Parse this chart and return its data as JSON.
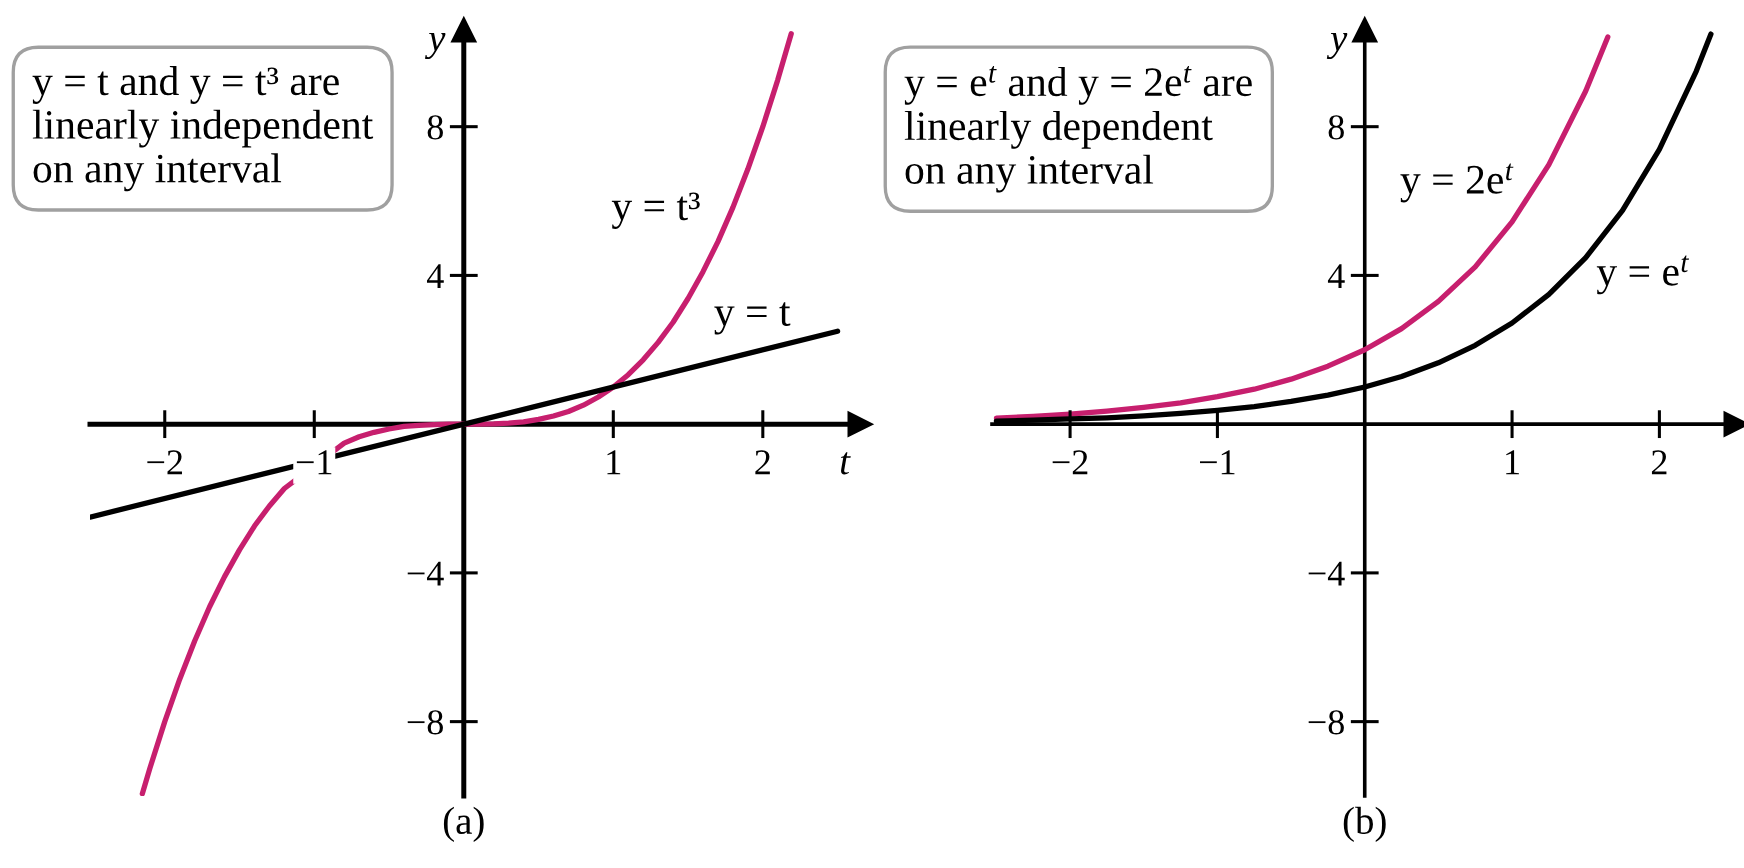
{
  "chart_data": [
    {
      "type": "line",
      "xlabel": "t",
      "ylabel": "y",
      "annotations": [
        "y = t and y = t³ are\nlinearly independent\non any interval",
        "(a)"
      ],
      "xlim": [
        -2.5,
        2.65
      ],
      "ylim": [
        -10,
        10.6
      ],
      "xticks": [
        -2,
        -1,
        1,
        2
      ],
      "yticks": [
        -8,
        -4,
        4,
        8
      ],
      "series": [
        {
          "name": "y = t³",
          "color": "#c71f6e",
          "x": [
            -2.15,
            -2.1,
            -2.0,
            -1.9,
            -1.8,
            -1.7,
            -1.6,
            -1.5,
            -1.4,
            -1.3,
            -1.2,
            -0.8,
            -0.7,
            -0.6,
            -0.5,
            -0.4,
            -0.3,
            -0.2,
            -0.1,
            0,
            0.1,
            0.2,
            0.3,
            0.4,
            0.5,
            0.6,
            0.7,
            0.8,
            0.9,
            1.0,
            1.1,
            1.2,
            1.3,
            1.4,
            1.5,
            1.6,
            1.7,
            1.8,
            1.9,
            2.0,
            2.1,
            2.19
          ],
          "values": [
            -9.94,
            -9.26,
            -8.0,
            -6.86,
            -5.83,
            -4.91,
            -4.1,
            -3.38,
            -2.74,
            -2.2,
            -1.73,
            -0.51,
            -0.34,
            -0.22,
            -0.13,
            -0.06,
            -0.03,
            -0.01,
            0.0,
            0,
            0.0,
            0.01,
            0.03,
            0.06,
            0.13,
            0.22,
            0.34,
            0.51,
            0.73,
            1.0,
            1.33,
            1.73,
            2.2,
            2.74,
            3.38,
            4.1,
            4.91,
            5.83,
            6.86,
            8.0,
            9.26,
            10.5
          ]
        },
        {
          "name": "y = t",
          "color": "#000000",
          "x": [
            -2.5,
            2.5
          ],
          "values": [
            -2.5,
            2.5
          ]
        }
      ]
    },
    {
      "type": "line",
      "ylabel": "y",
      "annotations": [
        "y = e$^{t}$ and y = 2e$^{t}$ are\nlinearly dependent\non any interval",
        "(b)"
      ],
      "xlim": [
        -2.53,
        2.52
      ],
      "ylim": [
        -10,
        10.6
      ],
      "xticks": [
        -2,
        -1,
        1,
        2
      ],
      "yticks": [
        -8,
        -4,
        4,
        8
      ],
      "series": [
        {
          "name": "y = 2e$^{t}$",
          "color": "#c71f6e",
          "x": [
            -2.5,
            -2.25,
            -2.0,
            -1.75,
            -1.5,
            -1.25,
            -1.0,
            -0.75,
            -0.5,
            -0.25,
            0,
            0.25,
            0.5,
            0.75,
            1.0,
            1.25,
            1.5,
            1.65
          ],
          "values": [
            0.16,
            0.21,
            0.27,
            0.35,
            0.45,
            0.57,
            0.74,
            0.94,
            1.21,
            1.56,
            2.0,
            2.57,
            3.3,
            4.23,
            5.44,
            6.98,
            8.96,
            10.41
          ]
        },
        {
          "name": "y = e$^{t}$",
          "color": "#000000",
          "x": [
            -2.5,
            -2.25,
            -2.0,
            -1.75,
            -1.5,
            -1.25,
            -1.0,
            -0.75,
            -0.5,
            -0.25,
            0,
            0.25,
            0.5,
            0.75,
            1.0,
            1.25,
            1.5,
            1.75,
            2.0,
            2.25,
            2.35
          ],
          "values": [
            0.08,
            0.11,
            0.14,
            0.17,
            0.22,
            0.29,
            0.37,
            0.47,
            0.61,
            0.78,
            1.0,
            1.28,
            1.65,
            2.12,
            2.72,
            3.49,
            4.48,
            5.75,
            7.39,
            9.49,
            10.49
          ]
        }
      ]
    }
  ]
}
